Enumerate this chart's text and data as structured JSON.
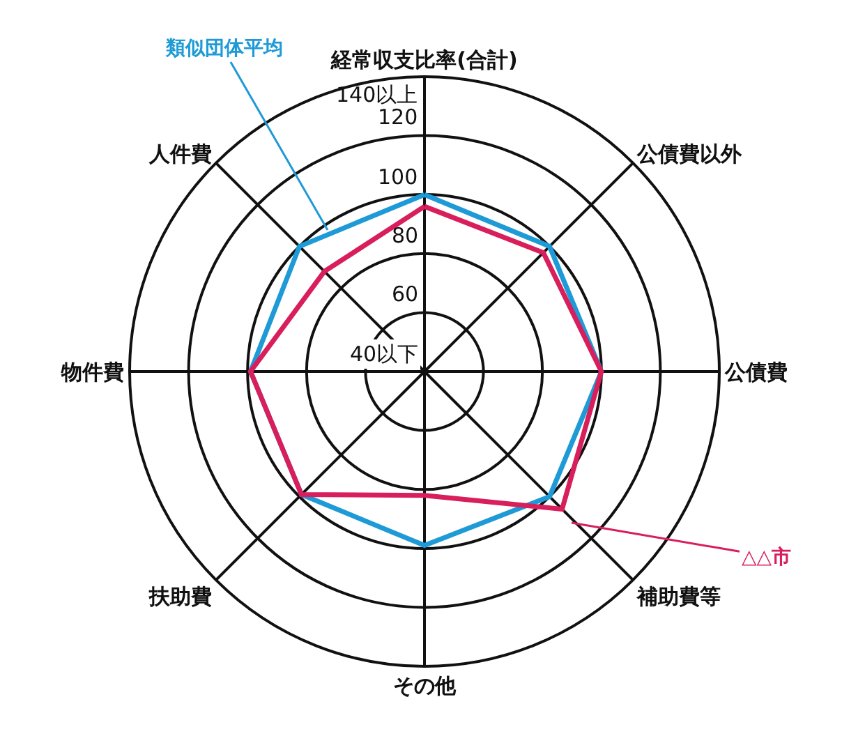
{
  "chart_data": {
    "type": "radar",
    "categories": [
      "経常収支比率(合計)",
      "公債費以外",
      "公債費",
      "補助費等",
      "その他",
      "扶助費",
      "物件費",
      "人件費"
    ],
    "series": [
      {
        "name": "類似団体平均",
        "color": "#1e9ad6",
        "values": [
          100,
          100,
          100,
          100,
          99,
          99,
          99,
          100
        ]
      },
      {
        "name": "△△市",
        "color": "#d81e5b",
        "values": [
          96,
          97,
          100,
          106,
          82,
          99,
          99,
          88
        ]
      }
    ],
    "ylim": [
      40,
      140
    ],
    "yticks": [
      {
        "value": 40,
        "label": "40以下"
      },
      60,
      80,
      100,
      120,
      {
        "value": 140,
        "label": "140以上"
      }
    ],
    "grid": true,
    "legend": false,
    "marker": "none",
    "line_style": "solid"
  }
}
